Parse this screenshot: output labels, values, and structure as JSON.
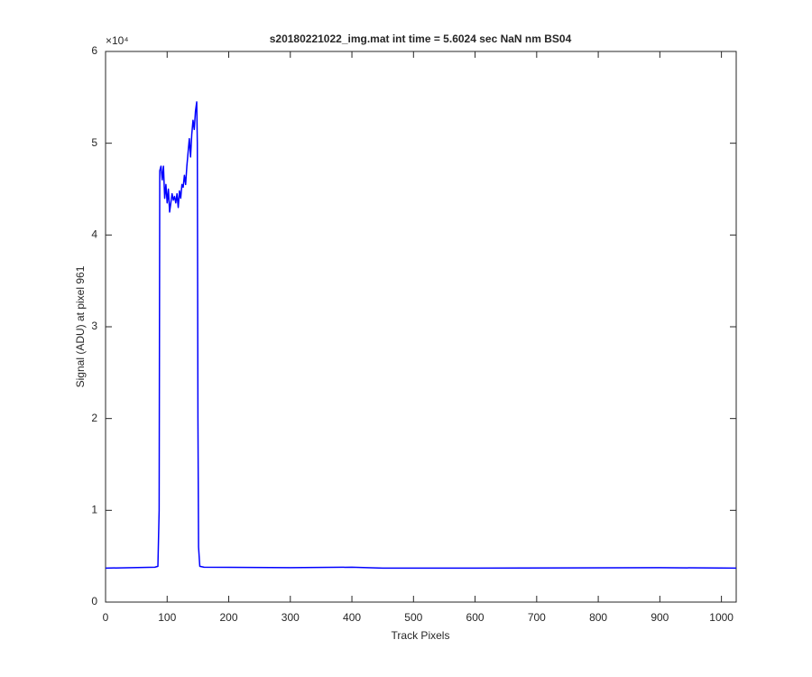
{
  "chart_data": {
    "type": "line",
    "title": "s20180221022_img.mat int time = 5.6024 sec  NaN nm BS04",
    "x_label": "Track Pixels",
    "y_label": "Signal (ADU) at pixel 961",
    "y_scale_label": "×10⁴",
    "x": [
      0,
      80,
      85,
      87,
      88,
      90,
      92,
      94,
      96,
      98,
      100,
      102,
      104,
      106,
      108,
      110,
      112,
      114,
      116,
      118,
      120,
      122,
      124,
      126,
      128,
      130,
      132,
      134,
      136,
      138,
      140,
      142,
      144,
      146,
      148,
      149,
      150,
      151,
      153,
      160,
      300,
      400,
      450,
      600,
      900,
      1024
    ],
    "values": [
      3700,
      3800,
      3900,
      10000,
      47000,
      47500,
      46000,
      47500,
      44000,
      45500,
      43500,
      45000,
      42500,
      43500,
      44500,
      43800,
      44200,
      43500,
      44500,
      43000,
      44800,
      44000,
      45500,
      45200,
      46500,
      45500,
      47500,
      49000,
      50500,
      48500,
      51000,
      52500,
      51500,
      53500,
      54500,
      50000,
      20000,
      6000,
      3900,
      3800,
      3750,
      3800,
      3700,
      3700,
      3750,
      3700
    ],
    "color": "#0000ff",
    "xlim": [
      0,
      1024
    ],
    "xticks": [
      0,
      100,
      200,
      300,
      400,
      500,
      600,
      700,
      800,
      900,
      1000
    ],
    "ylim": [
      0,
      60000
    ],
    "yticks": [
      {
        "value": 0,
        "label": "0"
      },
      {
        "value": 10000,
        "label": "1"
      },
      {
        "value": 20000,
        "label": "2"
      },
      {
        "value": 30000,
        "label": "3"
      },
      {
        "value": 40000,
        "label": "4"
      },
      {
        "value": 50000,
        "label": "5"
      },
      {
        "value": 60000,
        "label": "6"
      }
    ],
    "grid": false
  }
}
